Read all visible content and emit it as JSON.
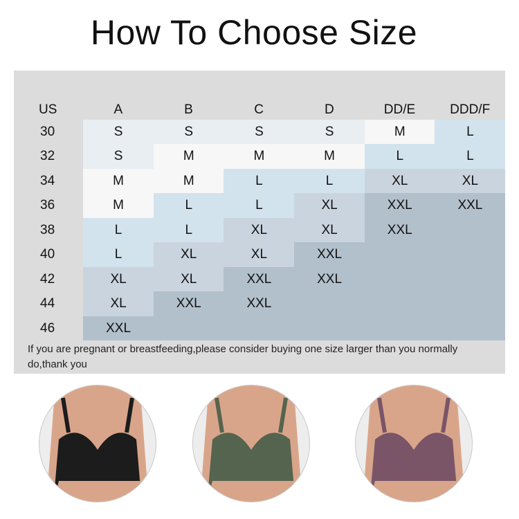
{
  "title": "How To Choose Size",
  "corner_label": "US",
  "columns": [
    "A",
    "B",
    "C",
    "D",
    "DD/E",
    "DDD/F"
  ],
  "rows": [
    {
      "band": "30",
      "sizes": [
        "S",
        "S",
        "S",
        "S",
        "M",
        "L"
      ]
    },
    {
      "band": "32",
      "sizes": [
        "S",
        "M",
        "M",
        "M",
        "L",
        "L"
      ]
    },
    {
      "band": "34",
      "sizes": [
        "M",
        "M",
        "L",
        "L",
        "XL",
        "XL"
      ]
    },
    {
      "band": "36",
      "sizes": [
        "M",
        "L",
        "L",
        "XL",
        "XXL",
        "XXL"
      ]
    },
    {
      "band": "38",
      "sizes": [
        "L",
        "L",
        "XL",
        "XL",
        "XXL",
        ""
      ]
    },
    {
      "band": "40",
      "sizes": [
        "L",
        "XL",
        "XL",
        "XXL",
        "",
        ""
      ]
    },
    {
      "band": "42",
      "sizes": [
        "XL",
        "XL",
        "XXL",
        "XXL",
        "",
        ""
      ]
    },
    {
      "band": "44",
      "sizes": [
        "XL",
        "XXL",
        "XXL",
        "",
        "",
        ""
      ]
    },
    {
      "band": "46",
      "sizes": [
        "XXL",
        "",
        "",
        "",
        "",
        ""
      ]
    }
  ],
  "size_colors": {
    "S": "#e8eef2",
    "M": "#f7f7f7",
    "L": "#d3e3ee",
    "XL": "#c9d4df",
    "XXL": "#b2c0cc",
    "": "#b2c0cc"
  },
  "note": "If you are pregnant or breastfeeding,please consider buying one size larger than you normally do,thank you",
  "product_photos": [
    {
      "color_name": "black",
      "color": "#1c1c1c"
    },
    {
      "color_name": "green",
      "color": "#55644e"
    },
    {
      "color_name": "purple",
      "color": "#7a5568"
    }
  ]
}
